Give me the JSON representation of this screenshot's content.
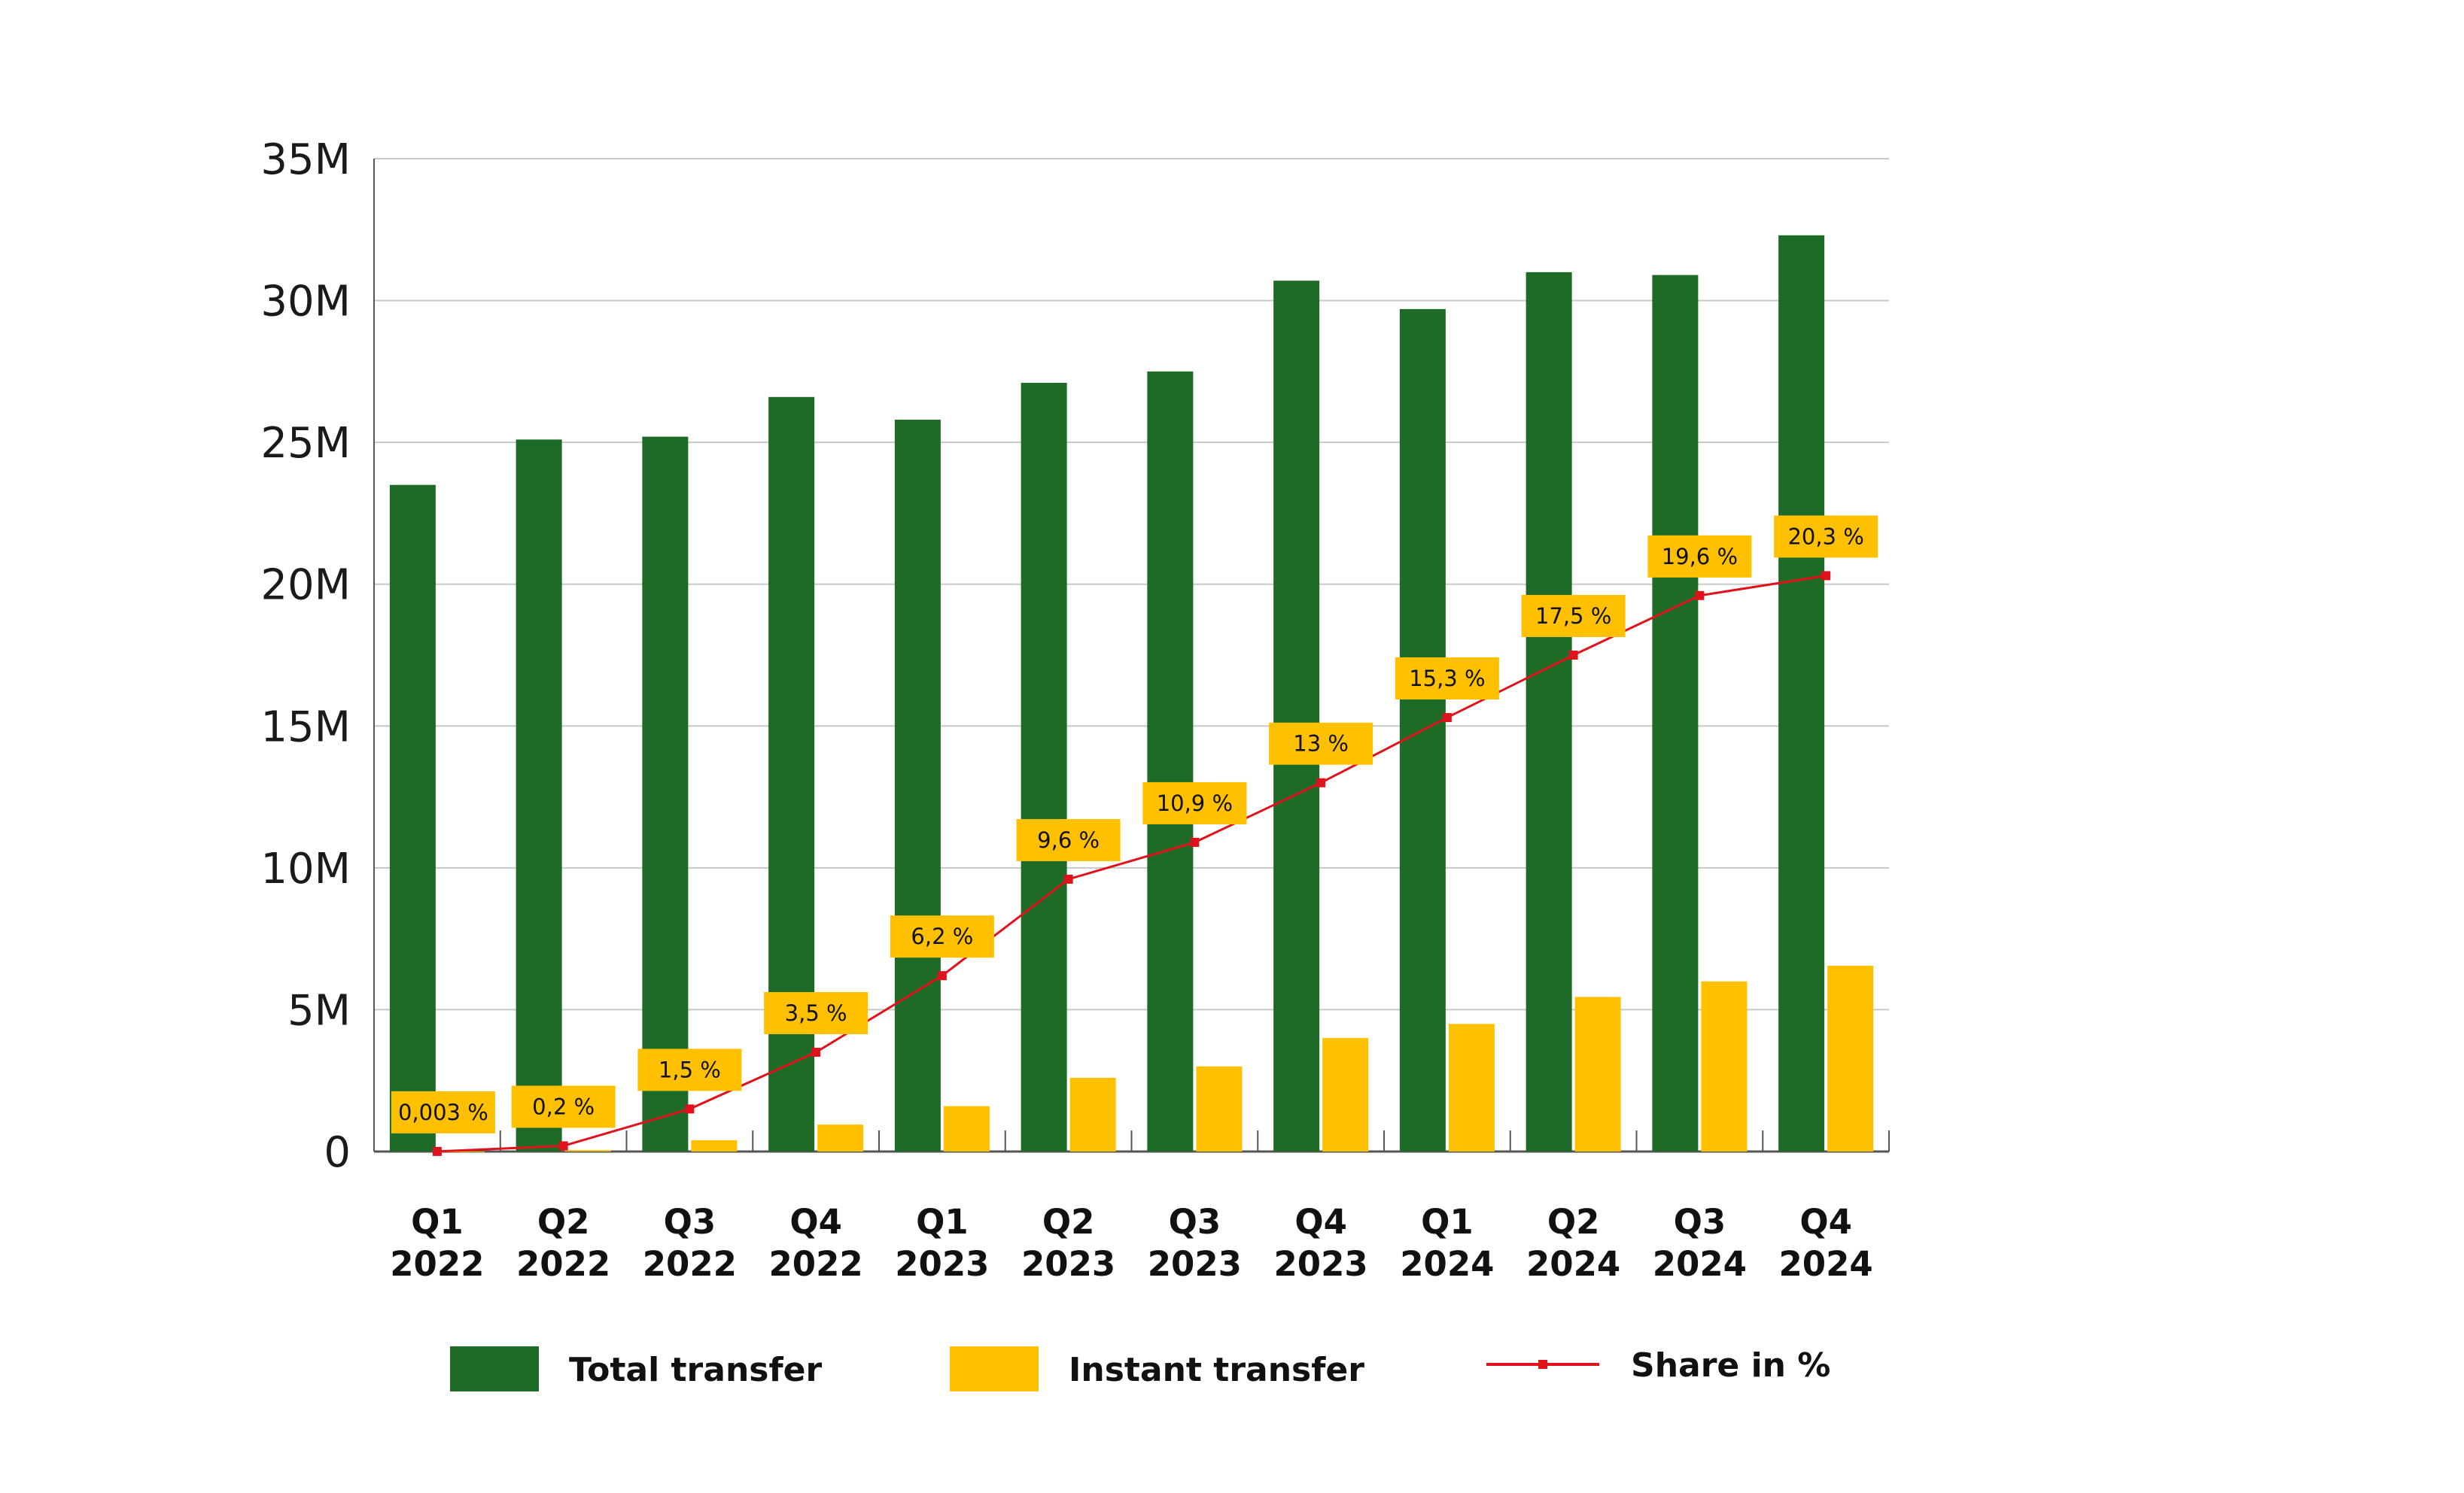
{
  "chart_data": {
    "type": "bar",
    "categories": [
      [
        "Q1",
        "2022"
      ],
      [
        "Q2",
        "2022"
      ],
      [
        "Q3",
        "2022"
      ],
      [
        "Q4",
        "2022"
      ],
      [
        "Q1",
        "2023"
      ],
      [
        "Q2",
        "2023"
      ],
      [
        "Q3",
        "2023"
      ],
      [
        "Q4",
        "2023"
      ],
      [
        "Q1",
        "2024"
      ],
      [
        "Q2",
        "2024"
      ],
      [
        "Q3",
        "2024"
      ],
      [
        "Q4",
        "2024"
      ]
    ],
    "series": [
      {
        "name": "Total transfer",
        "color": "#1d6b26",
        "values": [
          23.5,
          25.1,
          25.2,
          26.6,
          25.8,
          27.1,
          27.5,
          30.7,
          29.7,
          31.0,
          30.9,
          32.3
        ]
      },
      {
        "name": "Instant transfer",
        "color": "#ffc000",
        "values": [
          0.001,
          0.05,
          0.4,
          0.95,
          1.6,
          2.6,
          3.0,
          4.0,
          4.5,
          5.45,
          6.0,
          6.55
        ]
      }
    ],
    "share_series": {
      "name": "Share in %",
      "color": "#e0121b",
      "values": [
        0.003,
        0.2,
        1.5,
        3.5,
        6.2,
        9.6,
        10.9,
        13.0,
        15.3,
        17.5,
        19.6,
        20.3
      ],
      "labels": [
        "0,003 %",
        "0,2 %",
        "1,5 %",
        "3,5 %",
        "6,2 %",
        "9,6 %",
        "10,9 %",
        "13 %",
        "15,3 %",
        "17,5 %",
        "19,6 %",
        "20,3 %"
      ],
      "label_color": "#ffc000"
    },
    "y_axis": {
      "unit": "M",
      "ylim": [
        0,
        35
      ],
      "ticks": [
        0,
        5,
        10,
        15,
        20,
        25,
        30,
        35
      ],
      "tick_labels": [
        "0",
        "5M",
        "10M",
        "15M",
        "20M",
        "25M",
        "30M",
        "35M"
      ]
    },
    "grid": true,
    "legend_position": "bottom",
    "legend": [
      {
        "label": "Total transfer",
        "kind": "bar",
        "color": "#1d6b26"
      },
      {
        "label": "Instant transfer",
        "kind": "bar",
        "color": "#ffc000"
      },
      {
        "label": "Share in %",
        "kind": "line",
        "color": "#e0121b"
      }
    ]
  }
}
